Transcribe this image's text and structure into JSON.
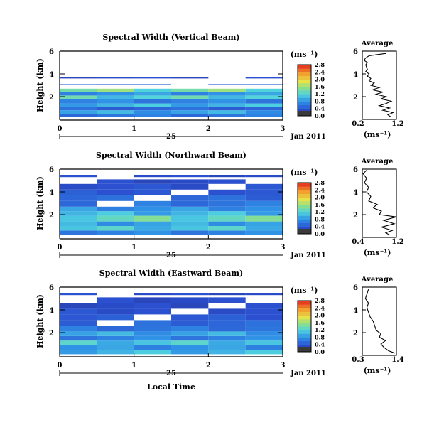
{
  "chart_data": [
    {
      "type": "heatmap",
      "title": "Spectral Width (Vertical Beam)",
      "ylabel": "Height (km)",
      "ylim": [
        0,
        6
      ],
      "yticks": [
        {
          "v": 2,
          "label": "2"
        },
        {
          "v": 4,
          "label": "4"
        },
        {
          "v": 6,
          "label": "6"
        }
      ],
      "xlim": [
        0,
        3
      ],
      "xticks": [
        "0",
        "1",
        "2",
        "3"
      ],
      "day_label": "25",
      "month_label": "Jan 2011",
      "colorbar": {
        "unit": "(ms-1)",
        "ticks": [
          "0.0",
          "0.4",
          "0.8",
          "1.2",
          "1.6",
          "2.0",
          "2.4",
          "2.8"
        ],
        "range": [
          0,
          2.8
        ]
      },
      "average": {
        "title": "Average",
        "unit": "(ms-1)",
        "xlim": [
          0.2,
          1.2
        ],
        "xticks": [
          "0.2",
          "1.2"
        ],
        "profile": [
          [
            1.05,
            0.2
          ],
          [
            0.95,
            0.4
          ],
          [
            1.1,
            0.6
          ],
          [
            0.8,
            0.8
          ],
          [
            1.0,
            1.0
          ],
          [
            0.7,
            1.2
          ],
          [
            0.9,
            1.4
          ],
          [
            1.05,
            1.6
          ],
          [
            0.75,
            1.8
          ],
          [
            0.9,
            2.0
          ],
          [
            0.6,
            2.2
          ],
          [
            0.8,
            2.4
          ],
          [
            0.5,
            2.6
          ],
          [
            0.7,
            2.8
          ],
          [
            0.45,
            3.0
          ],
          [
            0.55,
            3.2
          ],
          [
            0.4,
            3.4
          ],
          [
            0.45,
            3.6
          ],
          [
            0.35,
            3.8
          ],
          [
            0.4,
            4.0
          ],
          [
            0.3,
            4.2
          ],
          [
            0.35,
            4.4
          ],
          [
            0.3,
            4.8
          ],
          [
            0.35,
            5.0
          ],
          [
            0.25,
            5.2
          ],
          [
            0.3,
            5.4
          ],
          [
            0.4,
            5.6
          ],
          [
            0.9,
            5.8
          ]
        ]
      },
      "series": [
        {
          "y0": 0.2,
          "y1": 0.5,
          "value": 0.6
        },
        {
          "y0": 0.5,
          "y1": 0.8,
          "value": 0.9
        },
        {
          "y0": 0.8,
          "y1": 1.1,
          "value": 0.5
        },
        {
          "y0": 1.1,
          "y1": 1.4,
          "value": 1.0
        },
        {
          "y0": 1.4,
          "y1": 1.8,
          "value": 0.7
        },
        {
          "y0": 1.8,
          "y1": 2.1,
          "value": 1.2
        },
        {
          "y0": 2.1,
          "y1": 2.4,
          "value": 0.8
        },
        {
          "y0": 2.4,
          "y1": 2.7,
          "value": 1.4
        },
        {
          "y0": 3.0,
          "y1": 3.1,
          "value": 0.5
        },
        {
          "y0": 3.6,
          "y1": 3.7,
          "value": 0.3
        }
      ]
    },
    {
      "type": "heatmap",
      "title": "Spectral Width (Northward Beam)",
      "ylabel": "Height (km)",
      "ylim": [
        0,
        6
      ],
      "yticks": [
        {
          "v": 2,
          "label": "2"
        },
        {
          "v": 4,
          "label": "4"
        },
        {
          "v": 6,
          "label": "6"
        }
      ],
      "xlim": [
        0,
        3
      ],
      "xticks": [
        "0",
        "1",
        "2",
        "3"
      ],
      "day_label": "25",
      "month_label": "Jan 2011",
      "colorbar": {
        "unit": "(ms-1)",
        "ticks": [
          "0.0",
          "0.4",
          "0.8",
          "1.2",
          "1.6",
          "2.0",
          "2.4",
          "2.8"
        ],
        "range": [
          0,
          2.8
        ]
      },
      "average": {
        "title": "Average",
        "unit": "(ms-1)",
        "xlim": [
          0.4,
          1.2
        ],
        "xticks": [
          "0.4",
          "1.2"
        ],
        "profile": [
          [
            1.05,
            0.2
          ],
          [
            0.95,
            0.4
          ],
          [
            1.1,
            0.6
          ],
          [
            0.85,
            0.9
          ],
          [
            1.15,
            1.2
          ],
          [
            0.9,
            1.5
          ],
          [
            1.2,
            1.8
          ],
          [
            0.8,
            2.0
          ],
          [
            0.85,
            2.3
          ],
          [
            0.65,
            2.6
          ],
          [
            0.75,
            2.9
          ],
          [
            0.55,
            3.2
          ],
          [
            0.6,
            3.6
          ],
          [
            0.5,
            4.0
          ],
          [
            0.55,
            4.4
          ],
          [
            0.45,
            4.8
          ],
          [
            0.5,
            5.2
          ],
          [
            0.42,
            5.6
          ],
          [
            0.5,
            5.9
          ]
        ]
      },
      "series": [
        {
          "y0": 0.2,
          "y1": 0.6,
          "value": 0.7
        },
        {
          "y0": 0.6,
          "y1": 1.0,
          "value": 1.1
        },
        {
          "y0": 1.0,
          "y1": 1.4,
          "value": 0.9
        },
        {
          "y0": 1.4,
          "y1": 1.9,
          "value": 1.3
        },
        {
          "y0": 1.9,
          "y1": 2.3,
          "value": 1.0
        },
        {
          "y0": 2.3,
          "y1": 2.7,
          "value": 0.8
        },
        {
          "y0": 2.7,
          "y1": 3.2,
          "value": 0.6
        },
        {
          "y0": 3.2,
          "y1": 3.7,
          "value": 0.5
        },
        {
          "y0": 3.7,
          "y1": 4.2,
          "value": 0.4
        },
        {
          "y0": 4.2,
          "y1": 4.7,
          "value": 0.35
        },
        {
          "y0": 4.7,
          "y1": 5.1,
          "value": 0.3
        },
        {
          "y0": 5.3,
          "y1": 5.5,
          "value": 0.3
        }
      ]
    },
    {
      "type": "heatmap",
      "title": "Spectral Width (Eastward Beam)",
      "ylabel": "Height (km)",
      "ylim": [
        0,
        6
      ],
      "yticks": [
        {
          "v": 2,
          "label": "2"
        },
        {
          "v": 4,
          "label": "4"
        },
        {
          "v": 6,
          "label": "6"
        }
      ],
      "xlim": [
        0,
        3
      ],
      "xticks": [
        "0",
        "1",
        "2",
        "3"
      ],
      "day_label": "25",
      "month_label": "Jan 2011",
      "xlabel": "Local Time",
      "colorbar": {
        "unit": "(ms-1)",
        "ticks": [
          "0.0",
          "0.4",
          "0.8",
          "1.2",
          "1.6",
          "2.0",
          "2.4",
          "2.8"
        ],
        "range": [
          0,
          2.8
        ]
      },
      "average": {
        "title": "Average",
        "unit": "(ms-1)",
        "xlim": [
          0.3,
          1.4
        ],
        "xticks": [
          "0.3",
          "1.4"
        ],
        "profile": [
          [
            1.35,
            0.2
          ],
          [
            1.15,
            0.4
          ],
          [
            1.0,
            0.7
          ],
          [
            0.9,
            1.0
          ],
          [
            1.05,
            1.3
          ],
          [
            0.85,
            1.6
          ],
          [
            0.9,
            1.9
          ],
          [
            0.75,
            2.2
          ],
          [
            0.7,
            2.6
          ],
          [
            0.65,
            3.0
          ],
          [
            0.55,
            3.4
          ],
          [
            0.5,
            3.8
          ],
          [
            0.45,
            4.2
          ],
          [
            0.5,
            4.6
          ],
          [
            0.4,
            5.0
          ],
          [
            0.45,
            5.4
          ],
          [
            0.5,
            5.8
          ]
        ]
      },
      "series": [
        {
          "y0": 0.1,
          "y1": 0.5,
          "value": 1.0
        },
        {
          "y0": 0.5,
          "y1": 0.9,
          "value": 0.8
        },
        {
          "y0": 0.9,
          "y1": 1.3,
          "value": 1.1
        },
        {
          "y0": 1.3,
          "y1": 1.7,
          "value": 0.7
        },
        {
          "y0": 1.7,
          "y1": 2.1,
          "value": 0.9
        },
        {
          "y0": 2.1,
          "y1": 2.6,
          "value": 0.6
        },
        {
          "y0": 2.6,
          "y1": 3.1,
          "value": 0.5
        },
        {
          "y0": 3.1,
          "y1": 3.6,
          "value": 0.4
        },
        {
          "y0": 3.6,
          "y1": 4.1,
          "value": 0.35
        },
        {
          "y0": 4.1,
          "y1": 4.6,
          "value": 0.3
        },
        {
          "y0": 4.6,
          "y1": 5.1,
          "value": 0.3
        },
        {
          "y0": 5.3,
          "y1": 5.5,
          "value": 0.3
        }
      ]
    }
  ]
}
